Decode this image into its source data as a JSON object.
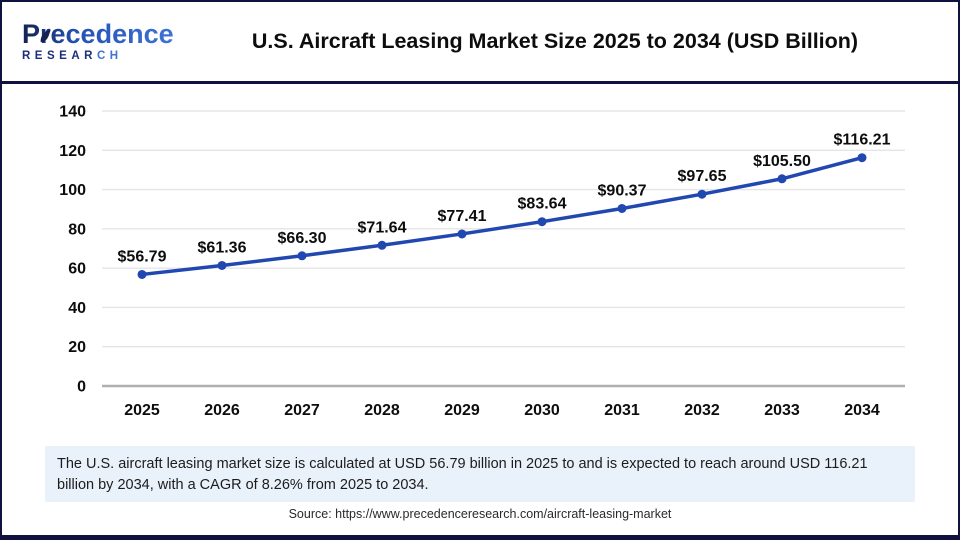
{
  "header": {
    "logo": {
      "line1_p": "P",
      "line1_rest": "recedence",
      "line2_main": "RESEAR",
      "line2_accent": "CH"
    },
    "title": "U.S. Aircraft Leasing Market Size 2025 to 2034 (USD Billion)"
  },
  "chart_data": {
    "type": "line",
    "title": "U.S. Aircraft Leasing Market Size 2025 to 2034 (USD Billion)",
    "categories": [
      "2025",
      "2026",
      "2027",
      "2028",
      "2029",
      "2030",
      "2031",
      "2032",
      "2033",
      "2034"
    ],
    "values": [
      56.79,
      61.36,
      66.3,
      71.64,
      77.41,
      83.64,
      90.37,
      97.65,
      105.5,
      116.21
    ],
    "point_labels": [
      "$56.79",
      "$61.36",
      "$66.30",
      "$71.64",
      "$77.41",
      "$83.64",
      "$90.37",
      "$97.65",
      "$105.50",
      "$116.21"
    ],
    "xlabel": "",
    "ylabel": "",
    "ylim": [
      0,
      140
    ],
    "ytick_step": 20,
    "yticks": [
      "0",
      "20",
      "40",
      "60",
      "80",
      "100",
      "120",
      "140"
    ],
    "grid": true,
    "legend_position": "none",
    "line_color": "#2148b1",
    "point_color": "#2148b1",
    "gridline_color": "#e5e5e5",
    "axis_line_color": "#b0b0b0",
    "label_color": "#0d0d0d"
  },
  "summary": {
    "text": "The U.S. aircraft leasing market size is calculated at USD 56.79 billion in 2025 to and is expected to reach around USD 116.21 billion by 2034, with a CAGR of 8.26% from 2025 to 2034."
  },
  "source": {
    "text": "Source: https://www.precedenceresearch.com/aircraft-leasing-market"
  }
}
